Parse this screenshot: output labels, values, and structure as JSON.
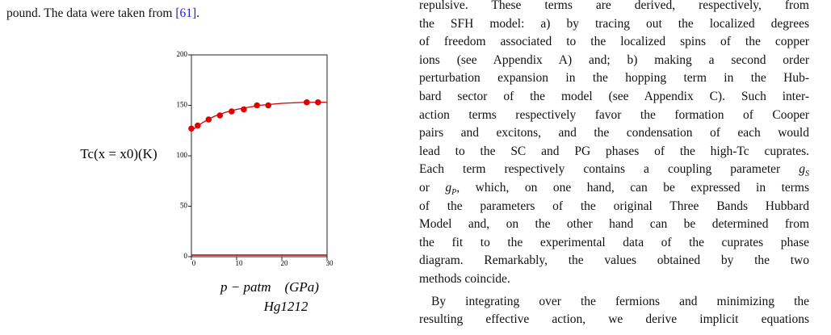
{
  "left_text": [
    "pound. The data were taken from ",
    {
      "cite": "[61]"
    },
    "."
  ],
  "chart_data": {
    "type": "scatter",
    "ylabel": "Tc(x = x0)(K)",
    "xlabel": "p − patm    (GPa)",
    "caption": "Hg1212",
    "xlim": [
      0,
      30
    ],
    "xticks": [
      0,
      10,
      20,
      30
    ],
    "ylim": [
      0,
      200
    ],
    "yticks": [
      0,
      50,
      100,
      150,
      200
    ],
    "series": [
      {
        "color": "#e00000",
        "x": [
          0,
          1.4,
          3.8,
          6.3,
          8.9,
          11.6,
          14.5,
          17,
          25.5,
          28
        ],
        "values": [
          127,
          130,
          136,
          140,
          144,
          146,
          150,
          150,
          153,
          153
        ]
      },
      {
        "type": "line",
        "color": "#c80000",
        "x": [
          0,
          2.5,
          5,
          7.5,
          10,
          12.5,
          15,
          17.5,
          20,
          22.5,
          25,
          27.5,
          30
        ],
        "values": [
          125,
          133,
          139,
          143,
          146,
          148,
          150,
          151,
          152,
          152.5,
          153,
          153,
          153
        ]
      }
    ]
  },
  "right_text": [
    [
      [
        "repulsive. These terms are derived, respectively, from"
      ],
      [
        "the SFH model: a) by tracing out the localized degrees"
      ],
      [
        "of freedom associated to the localized spins of the copper"
      ],
      [
        "ions (see Appendix A) and; b) making a second order"
      ],
      [
        "perturbation expansion in the hopping term in the Hub-"
      ],
      [
        "bard sector of the model (see Appendix C). Such inter-"
      ],
      [
        "action terms respectively favor the formation of Cooper"
      ],
      [
        "pairs and excitons, and the condensation of each would"
      ],
      [
        "lead to the SC and PG phases of the high-Tc cuprates."
      ],
      [
        "Each term respectively contains a coupling parameter ",
        {
          "math": "g",
          "sub": "S"
        }
      ],
      [
        "or ",
        {
          "math": "g",
          "sub": "P"
        },
        ", which, on one hand, can be expressed in terms"
      ],
      [
        "of the parameters of the original Three Bands Hubbard"
      ],
      [
        "Model and, on the other hand can be determined from"
      ],
      [
        "the fit to the experimental data of the cuprates phase"
      ],
      [
        "diagram. Remarkably, the values obtained by the two"
      ],
      [
        "methods coincide."
      ]
    ],
    [
      [
        "By integrating over the fermions and minimizing the"
      ],
      [
        "resulting effective action, we derive implicit equations"
      ]
    ]
  ]
}
